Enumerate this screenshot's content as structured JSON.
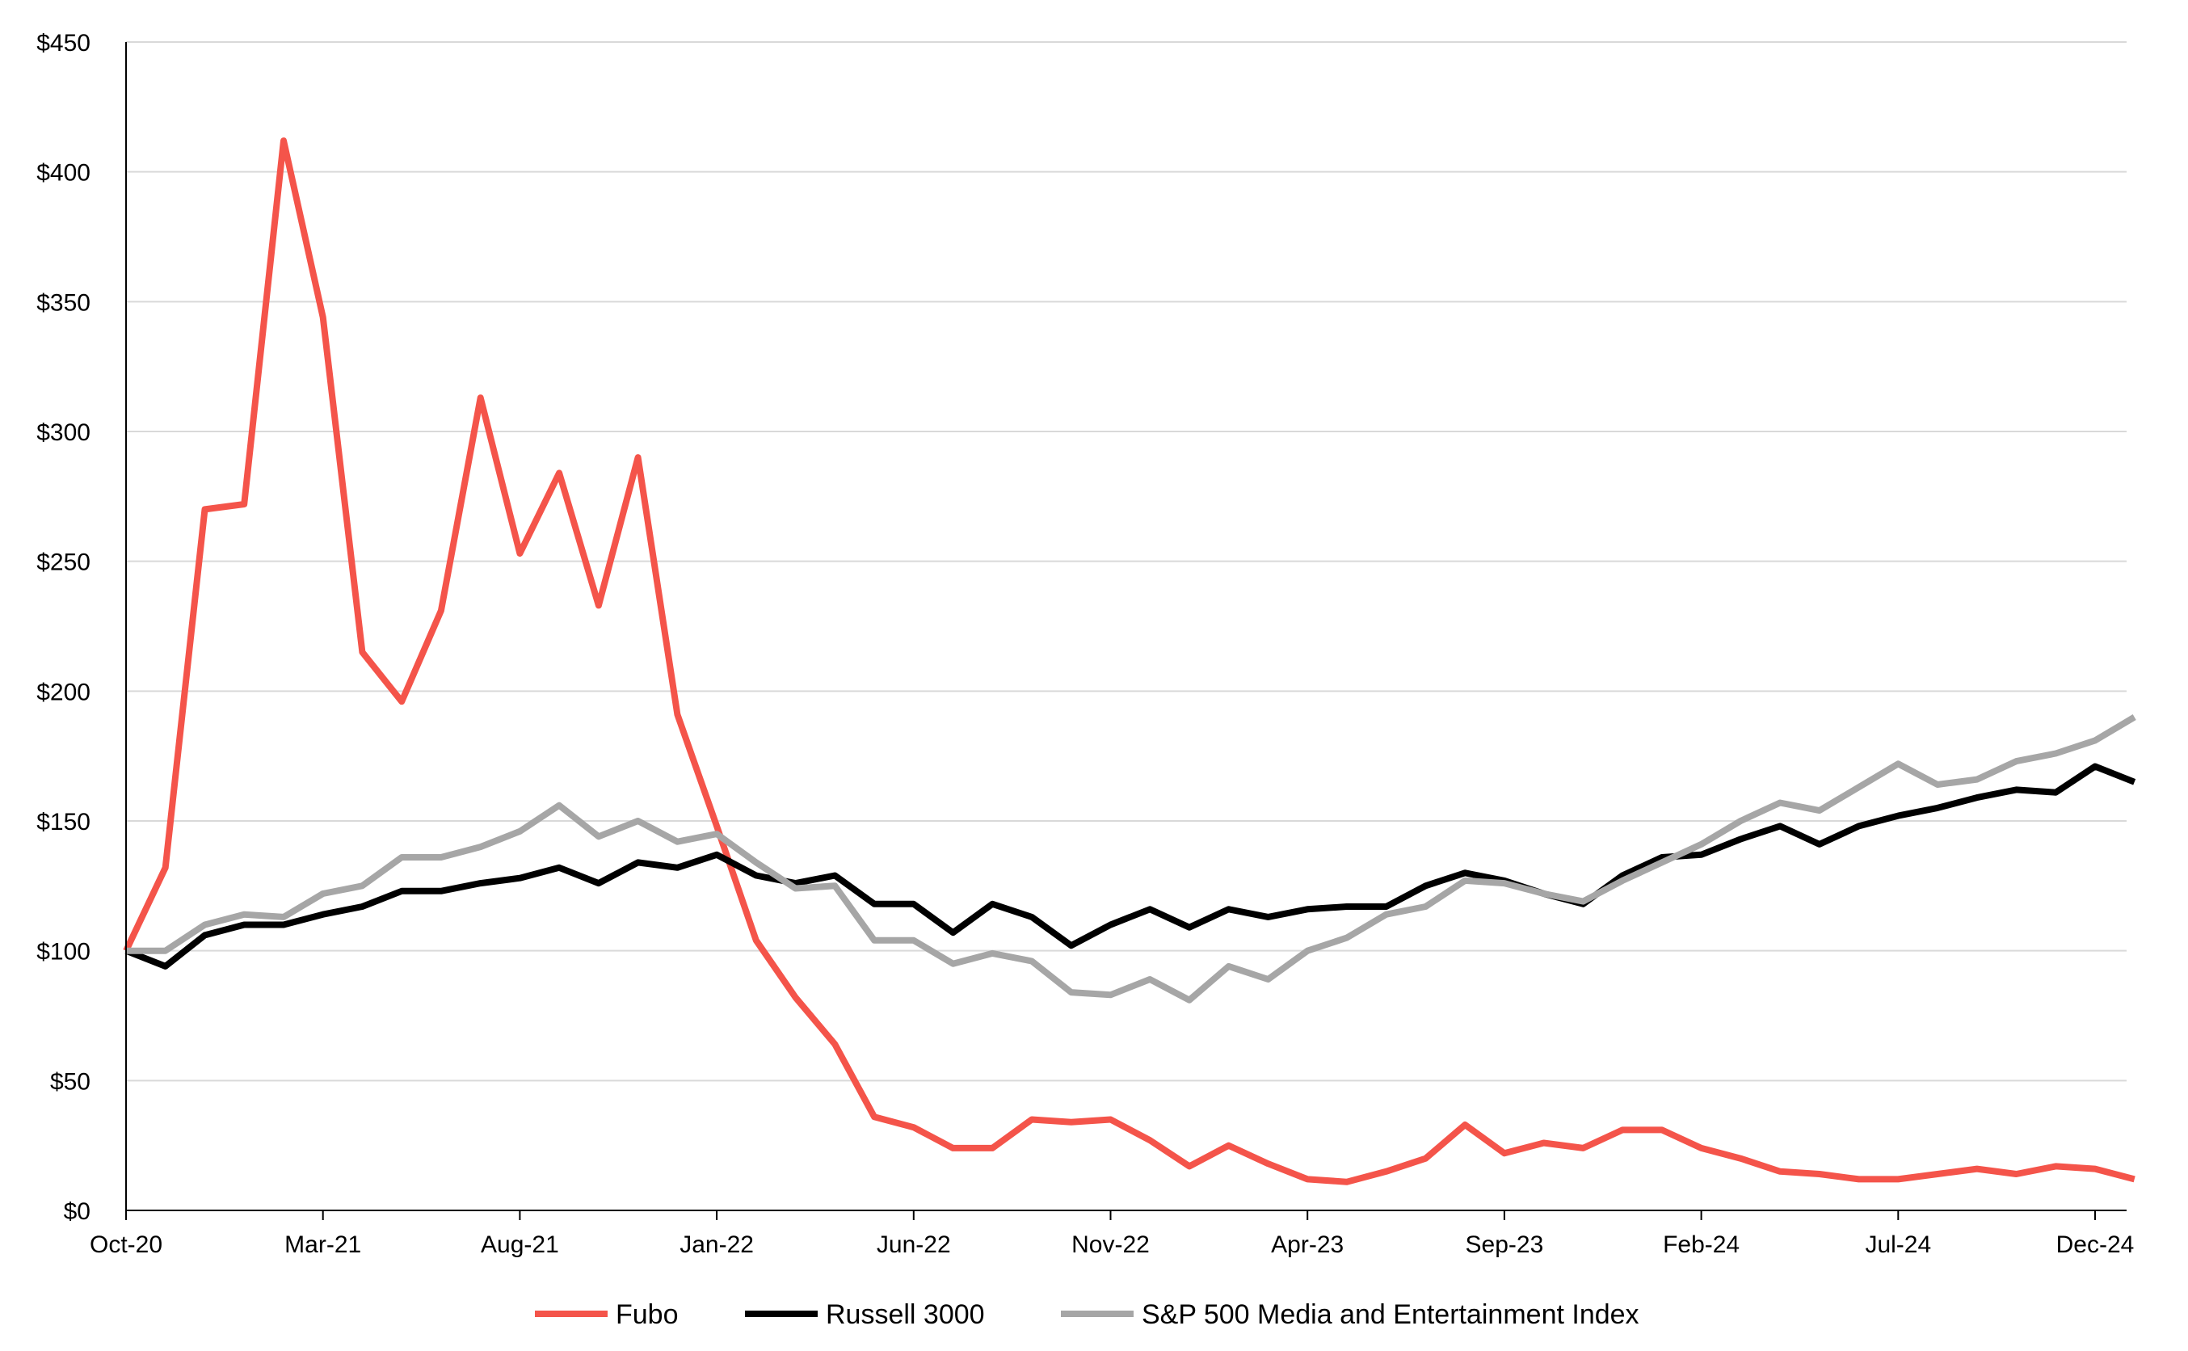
{
  "chart_data": {
    "type": "line",
    "title": "",
    "xlabel": "",
    "ylabel": "",
    "ylim": [
      0,
      450
    ],
    "y_ticks": [
      0,
      50,
      100,
      150,
      200,
      250,
      300,
      350,
      400,
      450
    ],
    "y_tick_labels": [
      "$0",
      "$50",
      "$100",
      "$150",
      "$200",
      "$250",
      "$300",
      "$350",
      "$400",
      "$450"
    ],
    "x_tick_labels": [
      "Oct-20",
      "Mar-21",
      "Aug-21",
      "Jan-22",
      "Jun-22",
      "Nov-22",
      "Apr-23",
      "Sep-23",
      "Feb-24",
      "Jul-24",
      "Dec-24"
    ],
    "x_tick_month_index": [
      0,
      5,
      10,
      15,
      20,
      25,
      30,
      35,
      40,
      45,
      50
    ],
    "x_range_months": [
      0,
      50.8
    ],
    "grid": "horizontal",
    "legend_position": "bottom-center",
    "series": [
      {
        "name": "Fubo",
        "color": "#f4544a",
        "values": [
          100,
          132,
          270,
          272,
          412,
          344,
          215,
          196,
          231,
          313,
          253,
          284,
          233,
          290,
          191,
          148,
          104,
          82,
          64,
          36,
          32,
          24,
          24,
          35,
          34,
          35,
          27,
          17,
          25,
          18,
          12,
          11,
          15,
          20,
          33,
          22,
          26,
          24,
          31,
          31,
          24,
          20,
          15,
          14,
          12,
          12,
          14,
          16,
          14,
          17,
          16,
          12
        ]
      },
      {
        "name": "Russell 3000",
        "color": "#000000",
        "values": [
          100,
          94,
          106,
          110,
          110,
          114,
          117,
          123,
          123,
          126,
          128,
          132,
          126,
          134,
          132,
          137,
          129,
          126,
          129,
          118,
          118,
          107,
          118,
          113,
          102,
          110,
          116,
          109,
          116,
          113,
          116,
          117,
          117,
          125,
          130,
          127,
          122,
          118,
          129,
          136,
          137,
          143,
          148,
          141,
          148,
          152,
          155,
          159,
          162,
          161,
          171,
          165
        ]
      },
      {
        "name": "S&P 500 Media and Entertainment Index",
        "color": "#a6a6a6",
        "values": [
          100,
          100,
          110,
          114,
          113,
          122,
          125,
          136,
          136,
          140,
          146,
          156,
          144,
          150,
          142,
          145,
          134,
          124,
          125,
          104,
          104,
          95,
          99,
          96,
          84,
          83,
          89,
          81,
          94,
          89,
          100,
          105,
          114,
          117,
          127,
          126,
          122,
          119,
          127,
          134,
          141,
          150,
          157,
          154,
          163,
          172,
          164,
          166,
          173,
          176,
          181,
          190
        ]
      }
    ]
  }
}
